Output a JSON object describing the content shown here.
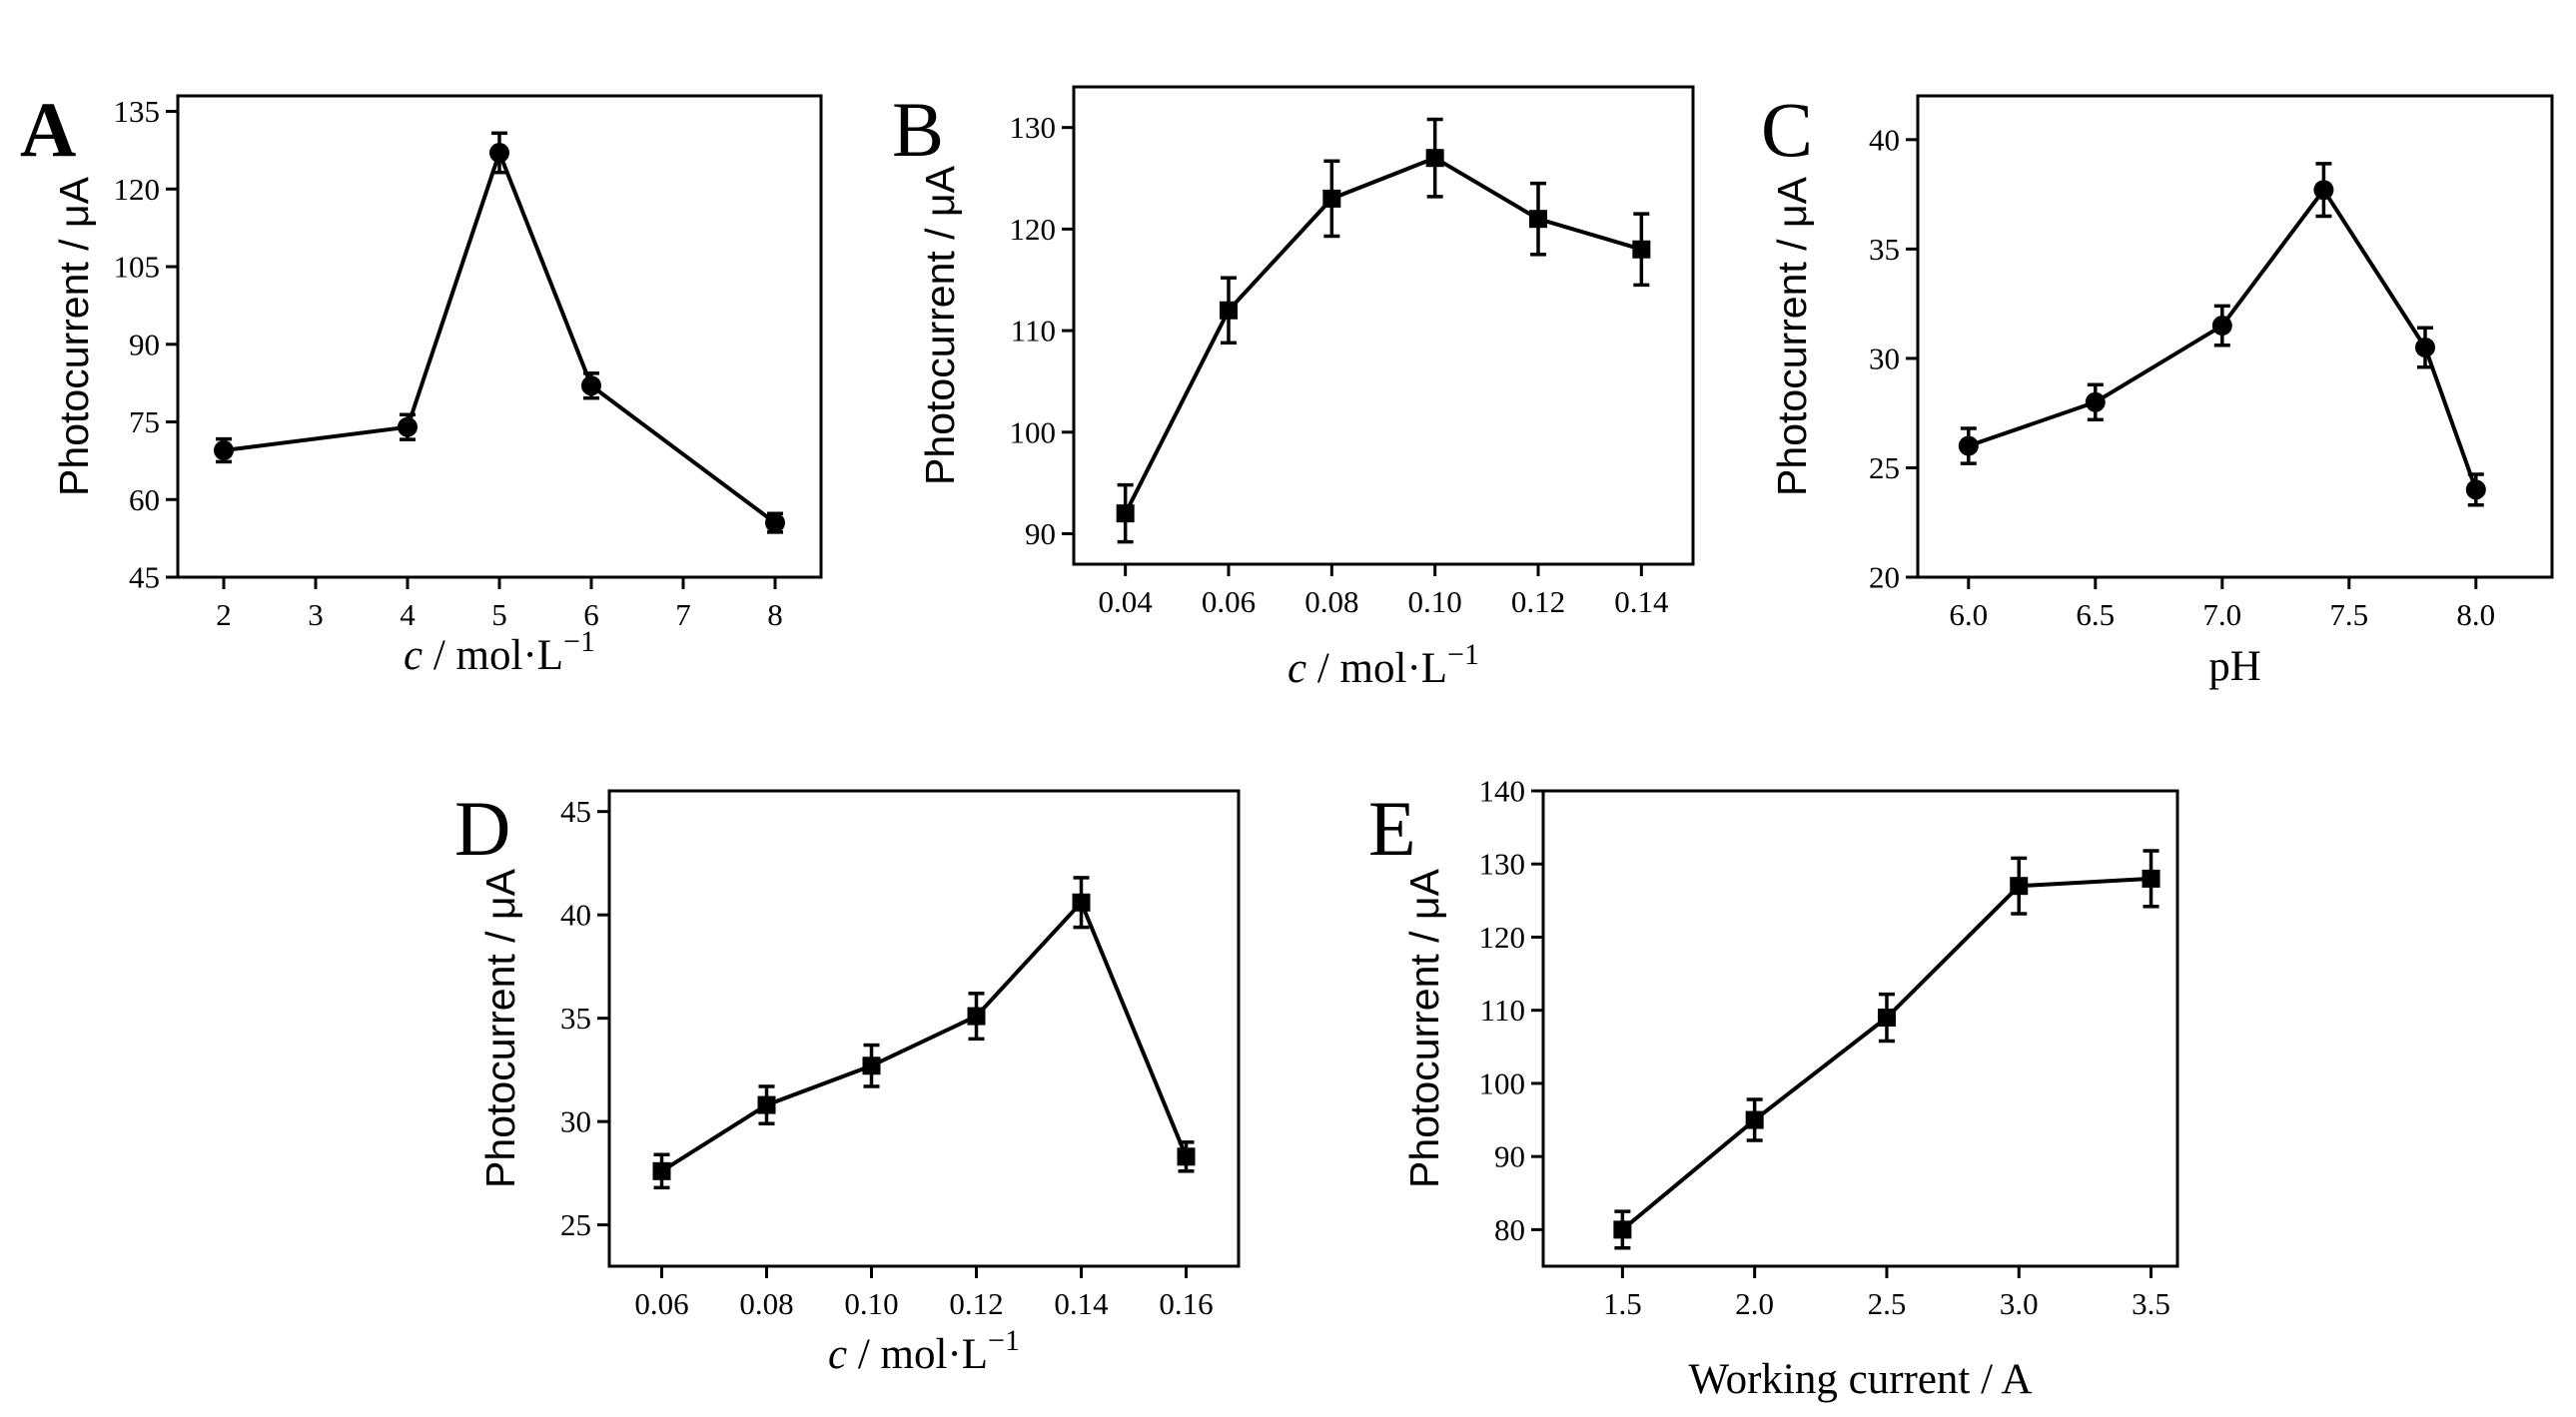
{
  "chart_data": [
    {
      "panel": "A",
      "type": "line",
      "marker": "circle",
      "x": [
        2,
        4,
        5,
        6,
        8
      ],
      "values": [
        69.5,
        74,
        127,
        82,
        55.5
      ],
      "errors": [
        2.2,
        2.4,
        3.8,
        2.4,
        1.8
      ],
      "xlim": [
        1.5,
        8.5
      ],
      "ylim": [
        45,
        138
      ],
      "xticks": [
        2,
        3,
        4,
        5,
        6,
        7,
        8
      ],
      "xticklabels": [
        "2",
        "3",
        "4",
        "5",
        "6",
        "7",
        "8"
      ],
      "yticks": [
        45,
        60,
        75,
        90,
        105,
        120,
        135
      ],
      "yticklabels": [
        "45",
        "60",
        "75",
        "90",
        "105",
        "120",
        "135"
      ],
      "xlabel_var": "c",
      "xlabel_rest": " / mol·L",
      "xlabel_sup": "−1",
      "ylabel": "Photocurrent / μA"
    },
    {
      "panel": "B",
      "type": "line",
      "marker": "square",
      "x": [
        0.04,
        0.06,
        0.08,
        0.1,
        0.12,
        0.14
      ],
      "values": [
        92,
        112,
        123,
        127,
        121,
        118
      ],
      "errors": [
        2.8,
        3.2,
        3.7,
        3.8,
        3.5,
        3.5
      ],
      "xlim": [
        0.03,
        0.15
      ],
      "ylim": [
        87,
        134
      ],
      "xticks": [
        0.04,
        0.06,
        0.08,
        0.1,
        0.12,
        0.14
      ],
      "xticklabels": [
        "0.04",
        "0.06",
        "0.08",
        "0.10",
        "0.12",
        "0.14"
      ],
      "yticks": [
        90,
        100,
        110,
        120,
        130
      ],
      "yticklabels": [
        "90",
        "100",
        "110",
        "120",
        "130"
      ],
      "xlabel_var": "c",
      "xlabel_rest": " / mol·L",
      "xlabel_sup": "−1",
      "ylabel": "Photocurrent / μA"
    },
    {
      "panel": "C",
      "type": "line",
      "marker": "circle",
      "x": [
        6.0,
        6.5,
        7.0,
        7.4,
        7.8,
        8.0
      ],
      "values": [
        26,
        28,
        31.5,
        37.7,
        30.5,
        24
      ],
      "errors": [
        0.8,
        0.8,
        0.9,
        1.2,
        0.9,
        0.7
      ],
      "xlim": [
        5.8,
        8.3
      ],
      "ylim": [
        20,
        42
      ],
      "xticks": [
        6.0,
        6.5,
        7.0,
        7.5,
        8.0
      ],
      "xticklabels": [
        "6.0",
        "6.5",
        "7.0",
        "7.5",
        "8.0"
      ],
      "yticks": [
        20,
        25,
        30,
        35,
        40
      ],
      "yticklabels": [
        "20",
        "25",
        "30",
        "35",
        "40"
      ],
      "xlabel_var": "",
      "xlabel_rest": "pH",
      "xlabel_sup": "",
      "ylabel": "Photocurrent / μA"
    },
    {
      "panel": "D",
      "type": "line",
      "marker": "square",
      "x": [
        0.06,
        0.08,
        0.1,
        0.12,
        0.14,
        0.16
      ],
      "values": [
        27.6,
        30.8,
        32.7,
        35.1,
        40.6,
        28.3
      ],
      "errors": [
        0.8,
        0.9,
        1.0,
        1.1,
        1.2,
        0.7
      ],
      "xlim": [
        0.05,
        0.17
      ],
      "ylim": [
        23,
        46
      ],
      "xticks": [
        0.06,
        0.08,
        0.1,
        0.12,
        0.14,
        0.16
      ],
      "xticklabels": [
        "0.06",
        "0.08",
        "0.10",
        "0.12",
        "0.14",
        "0.16"
      ],
      "yticks": [
        25,
        30,
        35,
        40,
        45
      ],
      "yticklabels": [
        "25",
        "30",
        "35",
        "40",
        "45"
      ],
      "xlabel_var": "c",
      "xlabel_rest": " / mol·L",
      "xlabel_sup": "−1",
      "ylabel": "Photocurrent / μA"
    },
    {
      "panel": "E",
      "type": "line",
      "marker": "square",
      "x": [
        1.5,
        2.0,
        2.5,
        3.0,
        3.5
      ],
      "values": [
        80,
        95,
        109,
        127,
        128
      ],
      "errors": [
        2.5,
        2.8,
        3.2,
        3.8,
        3.8
      ],
      "xlim": [
        1.2,
        3.6
      ],
      "ylim": [
        75,
        140
      ],
      "xticks": [
        1.5,
        2.0,
        2.5,
        3.0,
        3.5
      ],
      "xticklabels": [
        "1.5",
        "2.0",
        "2.5",
        "3.0",
        "3.5"
      ],
      "yticks": [
        80,
        90,
        100,
        110,
        120,
        130,
        140
      ],
      "yticklabels": [
        "80",
        "90",
        "100",
        "110",
        "120",
        "130",
        "140"
      ],
      "xlabel_var": "",
      "xlabel_rest": "Working current / A",
      "xlabel_sup": "",
      "ylabel": "Photocurrent / μA"
    }
  ]
}
